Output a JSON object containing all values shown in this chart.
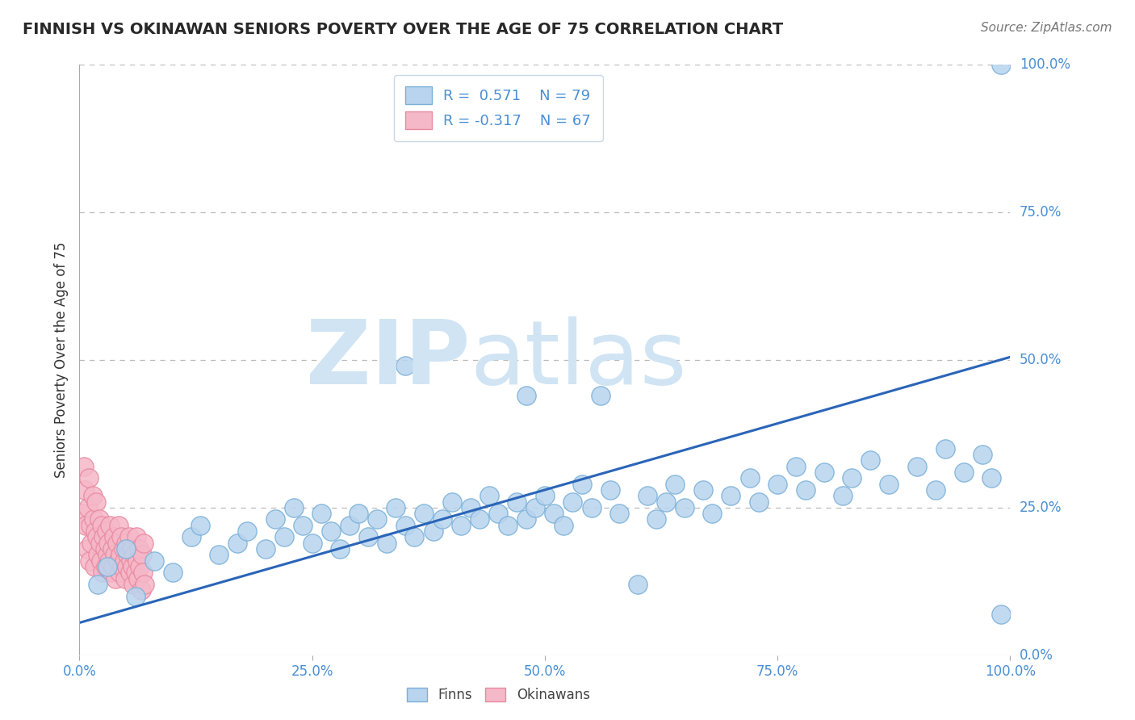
{
  "title": "FINNISH VS OKINAWAN SENIORS POVERTY OVER THE AGE OF 75 CORRELATION CHART",
  "source": "Source: ZipAtlas.com",
  "ylabel": "Seniors Poverty Over the Age of 75",
  "finn_R": 0.571,
  "finn_N": 79,
  "okin_R": -0.317,
  "okin_N": 67,
  "finn_color": "#b8d4ee",
  "okin_color": "#f5b8c8",
  "finn_edge_color": "#7ab0d8",
  "okin_edge_color": "#e88aa0",
  "line_color": "#2a65b8",
  "title_color": "#282828",
  "axis_tick_color": "#4a8fd4",
  "watermark_color_zip": "#d0e4f4",
  "watermark_color_atlas": "#d0e4f4",
  "background_color": "#ffffff",
  "grid_color": "#bbbbbb",
  "xlim": [
    0.0,
    1.0
  ],
  "ylim": [
    0.0,
    1.0
  ],
  "xticks": [
    0.0,
    0.25,
    0.5,
    0.75,
    1.0
  ],
  "yticks": [
    0.0,
    0.25,
    0.5,
    0.75,
    1.0
  ],
  "tick_labels": [
    "0.0%",
    "25.0%",
    "50.0%",
    "75.0%",
    "100.0%"
  ],
  "finn_line_x0": 0.0,
  "finn_line_y0": 0.055,
  "finn_line_x1": 1.0,
  "finn_line_y1": 0.505,
  "finn_x": [
    0.02,
    0.03,
    0.05,
    0.06,
    0.08,
    0.1,
    0.12,
    0.13,
    0.15,
    0.17,
    0.18,
    0.2,
    0.21,
    0.22,
    0.23,
    0.24,
    0.25,
    0.26,
    0.27,
    0.28,
    0.29,
    0.3,
    0.31,
    0.32,
    0.33,
    0.34,
    0.35,
    0.36,
    0.37,
    0.38,
    0.39,
    0.4,
    0.41,
    0.42,
    0.43,
    0.44,
    0.45,
    0.46,
    0.47,
    0.48,
    0.49,
    0.5,
    0.51,
    0.52,
    0.53,
    0.54,
    0.55,
    0.57,
    0.58,
    0.6,
    0.61,
    0.62,
    0.63,
    0.64,
    0.65,
    0.67,
    0.68,
    0.7,
    0.72,
    0.73,
    0.75,
    0.77,
    0.78,
    0.8,
    0.82,
    0.83,
    0.85,
    0.87,
    0.9,
    0.92,
    0.93,
    0.95,
    0.97,
    0.98,
    0.99,
    0.35,
    0.48,
    0.56,
    0.99
  ],
  "finn_y": [
    0.12,
    0.15,
    0.18,
    0.1,
    0.16,
    0.14,
    0.2,
    0.22,
    0.17,
    0.19,
    0.21,
    0.18,
    0.23,
    0.2,
    0.25,
    0.22,
    0.19,
    0.24,
    0.21,
    0.18,
    0.22,
    0.24,
    0.2,
    0.23,
    0.19,
    0.25,
    0.22,
    0.2,
    0.24,
    0.21,
    0.23,
    0.26,
    0.22,
    0.25,
    0.23,
    0.27,
    0.24,
    0.22,
    0.26,
    0.23,
    0.25,
    0.27,
    0.24,
    0.22,
    0.26,
    0.29,
    0.25,
    0.28,
    0.24,
    0.12,
    0.27,
    0.23,
    0.26,
    0.29,
    0.25,
    0.28,
    0.24,
    0.27,
    0.3,
    0.26,
    0.29,
    0.32,
    0.28,
    0.31,
    0.27,
    0.3,
    0.33,
    0.29,
    0.32,
    0.28,
    0.35,
    0.31,
    0.34,
    0.3,
    0.07,
    0.49,
    0.44,
    0.44,
    1.0
  ],
  "okin_x": [
    0.003,
    0.005,
    0.006,
    0.007,
    0.008,
    0.009,
    0.01,
    0.011,
    0.012,
    0.013,
    0.014,
    0.015,
    0.016,
    0.017,
    0.018,
    0.019,
    0.02,
    0.021,
    0.022,
    0.023,
    0.024,
    0.025,
    0.026,
    0.027,
    0.028,
    0.029,
    0.03,
    0.031,
    0.032,
    0.033,
    0.034,
    0.035,
    0.036,
    0.037,
    0.038,
    0.039,
    0.04,
    0.041,
    0.042,
    0.043,
    0.044,
    0.045,
    0.046,
    0.047,
    0.048,
    0.049,
    0.05,
    0.051,
    0.052,
    0.053,
    0.054,
    0.055,
    0.056,
    0.057,
    0.058,
    0.059,
    0.06,
    0.061,
    0.062,
    0.063,
    0.064,
    0.065,
    0.066,
    0.067,
    0.068,
    0.069,
    0.07
  ],
  "okin_y": [
    0.24,
    0.32,
    0.28,
    0.22,
    0.18,
    0.25,
    0.3,
    0.16,
    0.22,
    0.19,
    0.27,
    0.23,
    0.15,
    0.21,
    0.26,
    0.2,
    0.17,
    0.23,
    0.19,
    0.16,
    0.22,
    0.14,
    0.2,
    0.18,
    0.15,
    0.21,
    0.17,
    0.19,
    0.16,
    0.22,
    0.14,
    0.18,
    0.15,
    0.2,
    0.17,
    0.13,
    0.19,
    0.16,
    0.22,
    0.14,
    0.17,
    0.2,
    0.15,
    0.18,
    0.16,
    0.13,
    0.19,
    0.15,
    0.17,
    0.2,
    0.14,
    0.16,
    0.18,
    0.15,
    0.12,
    0.17,
    0.14,
    0.2,
    0.16,
    0.13,
    0.18,
    0.15,
    0.11,
    0.17,
    0.14,
    0.19,
    0.12
  ]
}
